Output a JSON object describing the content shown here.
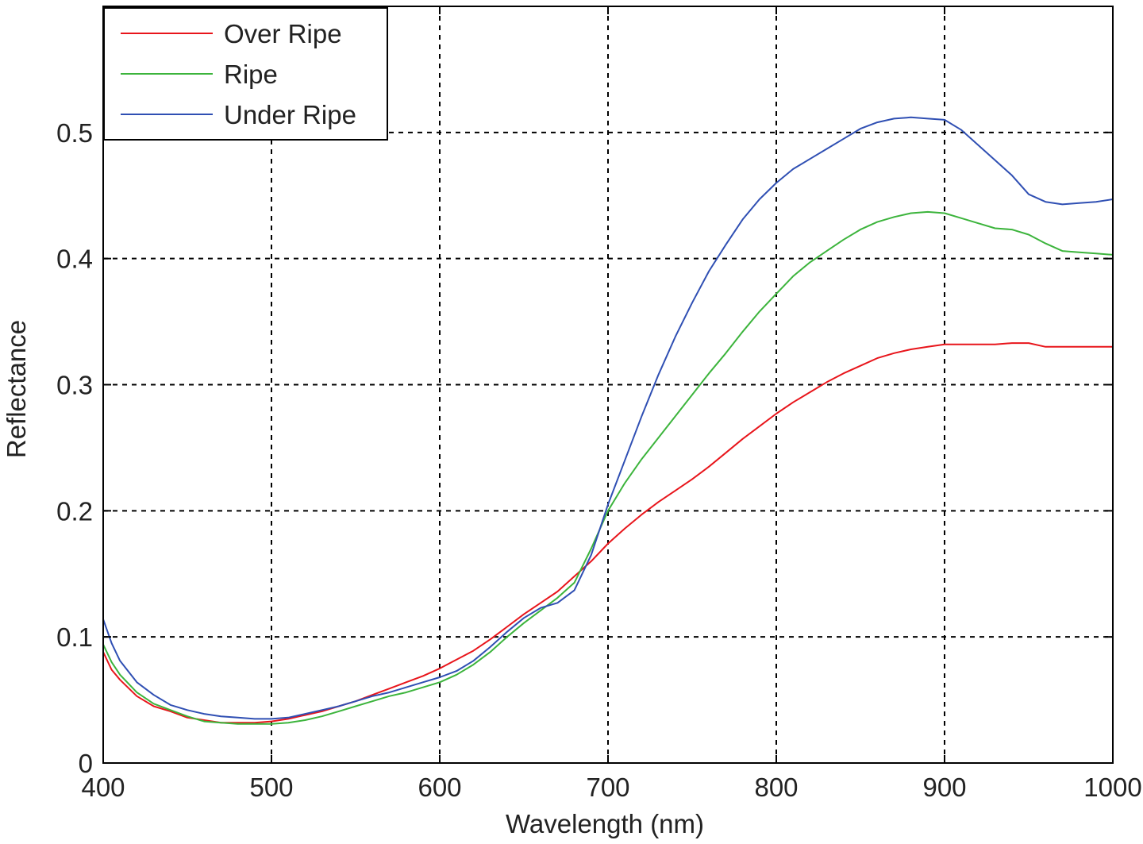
{
  "chart_data": {
    "type": "line",
    "title": "",
    "xlabel": "Wavelength (nm)",
    "ylabel": "Reflectance",
    "xlim": [
      400,
      1000
    ],
    "ylim": [
      0,
      0.6
    ],
    "xticks": [
      400,
      500,
      600,
      700,
      800,
      900,
      1000
    ],
    "yticks": [
      0,
      0.1,
      0.2,
      0.3,
      0.4,
      0.5
    ],
    "xtick_labels": [
      "400",
      "500",
      "600",
      "700",
      "800",
      "900",
      "1000"
    ],
    "ytick_labels": [
      "0",
      "0.1",
      "0.2",
      "0.3",
      "0.4",
      "0.5"
    ],
    "grid": true,
    "legend_position": "top-left",
    "series": [
      {
        "name": "Over Ripe",
        "color": "#e8151b",
        "x": [
          400,
          405,
          410,
          420,
          430,
          440,
          450,
          460,
          470,
          480,
          490,
          500,
          510,
          520,
          530,
          540,
          550,
          560,
          570,
          580,
          590,
          600,
          610,
          620,
          630,
          640,
          650,
          660,
          670,
          680,
          690,
          700,
          710,
          720,
          730,
          740,
          750,
          760,
          770,
          780,
          790,
          800,
          810,
          820,
          830,
          840,
          850,
          860,
          870,
          880,
          890,
          900,
          910,
          920,
          930,
          940,
          950,
          960,
          970,
          980,
          990,
          1000
        ],
        "y": [
          0.088,
          0.074,
          0.066,
          0.053,
          0.045,
          0.041,
          0.036,
          0.034,
          0.032,
          0.032,
          0.032,
          0.033,
          0.035,
          0.038,
          0.041,
          0.045,
          0.049,
          0.054,
          0.059,
          0.064,
          0.069,
          0.075,
          0.082,
          0.089,
          0.098,
          0.108,
          0.118,
          0.127,
          0.136,
          0.148,
          0.16,
          0.174,
          0.186,
          0.197,
          0.207,
          0.216,
          0.225,
          0.235,
          0.246,
          0.257,
          0.267,
          0.277,
          0.286,
          0.294,
          0.302,
          0.309,
          0.315,
          0.321,
          0.325,
          0.328,
          0.33,
          0.332,
          0.332,
          0.332,
          0.332,
          0.333,
          0.333,
          0.33,
          0.33,
          0.33,
          0.33,
          0.33
        ]
      },
      {
        "name": "Ripe",
        "color": "#3cb43c",
        "x": [
          400,
          405,
          410,
          420,
          430,
          440,
          450,
          460,
          470,
          480,
          490,
          500,
          510,
          520,
          530,
          540,
          550,
          560,
          570,
          580,
          590,
          600,
          610,
          620,
          630,
          640,
          650,
          660,
          670,
          680,
          690,
          700,
          710,
          720,
          730,
          740,
          750,
          760,
          770,
          780,
          790,
          800,
          810,
          820,
          830,
          840,
          850,
          860,
          870,
          880,
          890,
          900,
          910,
          920,
          930,
          940,
          950,
          960,
          970,
          980,
          990,
          1000
        ],
        "y": [
          0.094,
          0.08,
          0.07,
          0.056,
          0.047,
          0.042,
          0.037,
          0.033,
          0.032,
          0.031,
          0.031,
          0.031,
          0.032,
          0.034,
          0.037,
          0.041,
          0.045,
          0.049,
          0.053,
          0.056,
          0.06,
          0.064,
          0.07,
          0.078,
          0.088,
          0.1,
          0.111,
          0.121,
          0.131,
          0.143,
          0.17,
          0.2,
          0.222,
          0.241,
          0.258,
          0.275,
          0.292,
          0.309,
          0.325,
          0.342,
          0.358,
          0.372,
          0.386,
          0.397,
          0.406,
          0.415,
          0.423,
          0.429,
          0.433,
          0.436,
          0.437,
          0.436,
          0.432,
          0.428,
          0.424,
          0.423,
          0.419,
          0.412,
          0.406,
          0.405,
          0.404,
          0.403
        ]
      },
      {
        "name": "Under Ripe",
        "color": "#2f4fb3",
        "x": [
          400,
          405,
          410,
          420,
          430,
          440,
          450,
          460,
          470,
          480,
          490,
          500,
          510,
          520,
          530,
          540,
          550,
          560,
          570,
          580,
          590,
          600,
          610,
          620,
          630,
          640,
          650,
          660,
          670,
          680,
          690,
          700,
          710,
          720,
          730,
          740,
          750,
          760,
          770,
          780,
          790,
          800,
          810,
          820,
          830,
          840,
          850,
          860,
          870,
          880,
          890,
          900,
          910,
          920,
          930,
          940,
          950,
          960,
          970,
          980,
          990,
          1000
        ],
        "y": [
          0.114,
          0.095,
          0.081,
          0.064,
          0.054,
          0.046,
          0.042,
          0.039,
          0.037,
          0.036,
          0.035,
          0.035,
          0.036,
          0.039,
          0.042,
          0.045,
          0.049,
          0.053,
          0.056,
          0.06,
          0.064,
          0.068,
          0.073,
          0.081,
          0.092,
          0.104,
          0.115,
          0.123,
          0.127,
          0.137,
          0.165,
          0.205,
          0.24,
          0.275,
          0.308,
          0.338,
          0.365,
          0.39,
          0.411,
          0.431,
          0.447,
          0.46,
          0.471,
          0.479,
          0.487,
          0.495,
          0.503,
          0.508,
          0.511,
          0.512,
          0.511,
          0.51,
          0.502,
          0.49,
          0.478,
          0.466,
          0.451,
          0.445,
          0.443,
          0.444,
          0.445,
          0.447
        ]
      }
    ]
  }
}
